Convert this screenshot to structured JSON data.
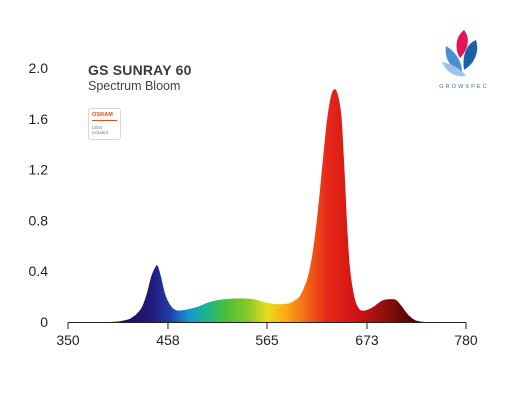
{
  "header": {
    "title": "GS SUNRAY 60",
    "subtitle": "Spectrum Bloom"
  },
  "badge": {
    "brand": "OSRAM",
    "note": "LEDs Included",
    "brand_color": "#e2511c"
  },
  "logo": {
    "text": "GROWSPEC",
    "icon": "lotus-flower-icon",
    "colors": [
      "#e3145a",
      "#1f5fa8",
      "#4a8fd4",
      "#9cc3e8"
    ]
  },
  "chart_data": {
    "type": "area",
    "title": "GS SUNRAY 60",
    "subtitle": "Spectrum Bloom",
    "xlabel": "",
    "ylabel": "",
    "xlim": [
      350,
      780
    ],
    "ylim": [
      0,
      2.0
    ],
    "x_ticks": [
      350,
      458,
      565,
      673,
      780
    ],
    "x_tick_labels": [
      "350",
      "458",
      "565",
      "673",
      "780"
    ],
    "y_ticks": [
      0,
      0.4,
      0.8,
      1.2,
      1.6,
      2.0
    ],
    "y_tick_labels": [
      "0",
      "0.4",
      "0.8",
      "1.2",
      "1.6",
      "2.0"
    ],
    "grid": false,
    "color_by": "wavelength",
    "series": [
      {
        "x": [
          395,
          405,
          415,
          420,
          425,
          430,
          435,
          440,
          445,
          447,
          450,
          455,
          460,
          465,
          470,
          480,
          490,
          500,
          510,
          520,
          530,
          540,
          550,
          560,
          570,
          580,
          590,
          595,
          600,
          605,
          610,
          615,
          620,
          625,
          630,
          635,
          640,
          645,
          648,
          650,
          652,
          655,
          660,
          665,
          670,
          675,
          680,
          690,
          700,
          705,
          710,
          715,
          720,
          725,
          730,
          735
        ],
        "y": [
          0,
          0.005,
          0.02,
          0.04,
          0.07,
          0.12,
          0.22,
          0.36,
          0.44,
          0.44,
          0.37,
          0.22,
          0.14,
          0.1,
          0.09,
          0.1,
          0.12,
          0.15,
          0.17,
          0.18,
          0.185,
          0.185,
          0.18,
          0.16,
          0.145,
          0.14,
          0.15,
          0.17,
          0.2,
          0.27,
          0.38,
          0.58,
          0.88,
          1.25,
          1.6,
          1.8,
          1.82,
          1.65,
          1.3,
          1.0,
          0.7,
          0.4,
          0.18,
          0.1,
          0.09,
          0.1,
          0.12,
          0.17,
          0.18,
          0.17,
          0.13,
          0.08,
          0.04,
          0.015,
          0.005,
          0
        ]
      }
    ]
  }
}
